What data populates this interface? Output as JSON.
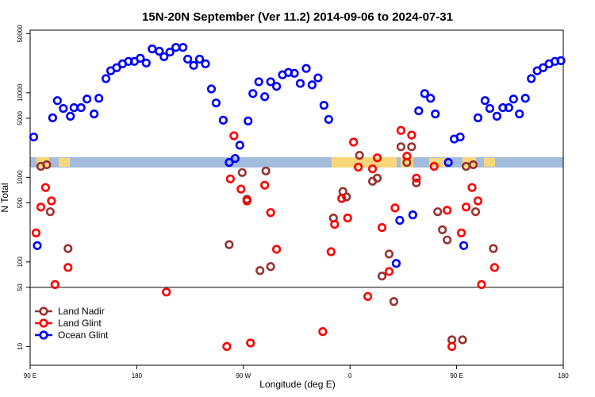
{
  "chart_data": {
    "type": "scatter",
    "title": "15N-20N September (Ver 11.2)   2014-09-06 to 2024-07-31",
    "x_label": "Longitude (deg E)",
    "y_label": "N Total",
    "xlim": [
      90,
      540
    ],
    "xticks": [
      {
        "value": 90,
        "label": "90 E"
      },
      180,
      {
        "value": 270,
        "label": "90 W"
      },
      {
        "value": 360,
        "label": "0"
      },
      {
        "value": 450,
        "label": "90 E"
      },
      {
        "value": 540,
        "label": "180"
      }
    ],
    "ylim": [
      6,
      55000
    ],
    "yticks": [
      10,
      50,
      100,
      500,
      1000,
      5000,
      10000,
      50000
    ],
    "log_y": true,
    "hline": 50,
    "legend": "lower left",
    "series": [
      {
        "name": "Land Nadir",
        "color": "#993333",
        "x": [
          99,
          104,
          107,
          122,
          258,
          269,
          273,
          289,
          284,
          293,
          346,
          354,
          357,
          368,
          379,
          383,
          387,
          393,
          397,
          403,
          408,
          412,
          416,
          434,
          438,
          442,
          446,
          455,
          458,
          464,
          466,
          481
        ],
        "values": [
          1350,
          1410,
          392,
          144,
          160,
          1140,
          551,
          1190,
          79,
          88,
          330,
          681,
          587,
          1820,
          899,
          979,
          68,
          124,
          34,
          2300,
          1500,
          2300,
          861,
          392,
          240,
          182,
          12,
          12,
          1350,
          1410,
          392,
          144
        ]
      },
      {
        "name": "Land Glint",
        "color": "#ff0000",
        "x": [
          95,
          99,
          103,
          108,
          111,
          122,
          205,
          256,
          262,
          259,
          268,
          273,
          276,
          288,
          293,
          298,
          337,
          344,
          347,
          353,
          358,
          363,
          367,
          375,
          379,
          383,
          387,
          393,
          398,
          403,
          408,
          412,
          416,
          431,
          442,
          446,
          454,
          458,
          463,
          468,
          471,
          482
        ],
        "values": [
          220,
          445,
          758,
          527,
          54,
          86,
          44,
          10,
          3100,
          958,
          727,
          527,
          11,
          808,
          383,
          141,
          15,
          132,
          278,
          562,
          330,
          2610,
          1320,
          39,
          1260,
          1700,
          255,
          77,
          435,
          3590,
          1780,
          3160,
          979,
          1350,
          408,
          10,
          220,
          445,
          758,
          527,
          54,
          86
        ]
      },
      {
        "name": "Ocean Glint",
        "color": "#0000ff",
        "x": [
          93,
          96,
          109,
          113,
          118,
          124,
          127,
          133,
          138,
          144,
          148,
          154,
          158,
          163,
          168,
          173,
          178,
          183,
          188,
          193,
          199,
          203,
          208,
          213,
          219,
          223,
          228,
          233,
          238,
          243,
          247,
          253,
          258,
          263,
          267,
          274,
          278,
          283,
          288,
          293,
          298,
          303,
          308,
          313,
          318,
          323,
          328,
          333,
          338,
          342,
          399,
          402,
          413,
          418,
          423,
          428,
          432,
          443,
          448,
          453,
          456,
          468,
          474,
          478,
          484,
          489,
          494,
          498,
          503,
          508,
          513,
          518,
          523,
          528,
          533,
          538
        ],
        "values": [
          3000,
          156,
          5060,
          8080,
          6530,
          5280,
          6670,
          6670,
          8430,
          5620,
          8610,
          14700,
          18200,
          19800,
          22000,
          23500,
          23500,
          25600,
          22500,
          33000,
          31000,
          26700,
          30300,
          34400,
          34400,
          25000,
          21100,
          25000,
          22000,
          11100,
          7580,
          4740,
          1500,
          1670,
          2400,
          4640,
          9790,
          13500,
          8990,
          13500,
          11900,
          16300,
          17400,
          17000,
          12900,
          19400,
          12400,
          15000,
          7110,
          4840,
          96,
          310,
          360,
          6120,
          9790,
          8610,
          5620,
          1500,
          2840,
          3000,
          156,
          5060,
          8080,
          6530,
          5280,
          6670,
          6670,
          8430,
          5620,
          8610,
          14700,
          18200,
          19800,
          22000,
          23500,
          24000
        ]
      }
    ]
  }
}
